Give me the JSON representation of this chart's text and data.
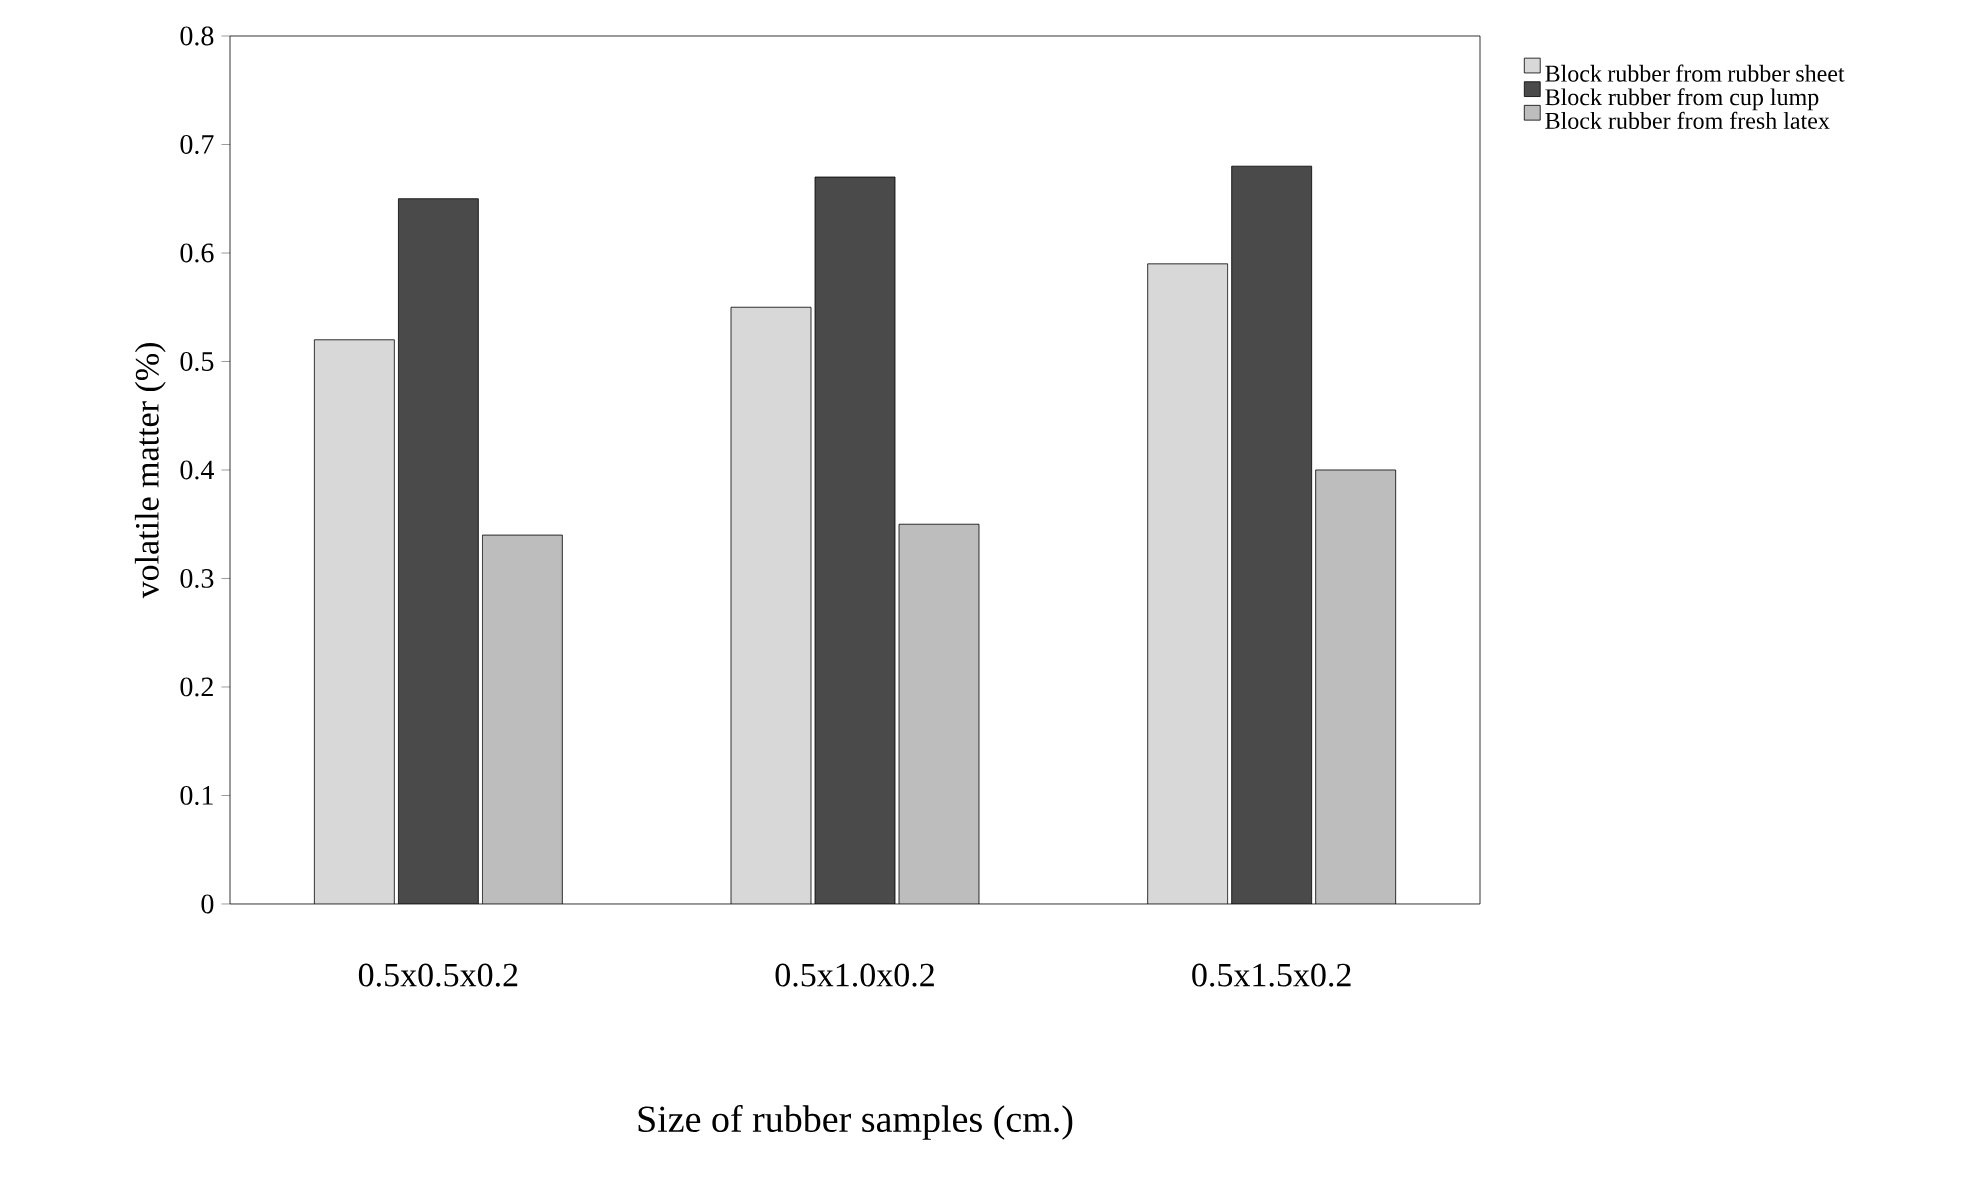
{
  "chart_data": {
    "type": "bar",
    "xlabel": "Size of rubber samples (cm.)",
    "ylabel": "volatile matter (%)",
    "categories": [
      "0.5x0.5x0.2",
      "0.5x1.0x0.2",
      "0.5x1.5x0.2"
    ],
    "series": [
      {
        "name": "Block rubber from rubber sheet",
        "color": "#d8d8d8",
        "values": [
          0.52,
          0.55,
          0.59
        ]
      },
      {
        "name": "Block rubber from cup lump",
        "color": "#4a4a4a",
        "values": [
          0.65,
          0.67,
          0.68
        ]
      },
      {
        "name": "Block rubber from fresh latex",
        "color": "#bdbdbd",
        "values": [
          0.34,
          0.35,
          0.4
        ]
      }
    ],
    "ylim": [
      0,
      0.8
    ],
    "yticks": [
      0,
      0.1,
      0.2,
      0.3,
      0.4,
      0.5,
      0.6,
      0.7,
      0.8
    ],
    "grid": false,
    "legend": "right"
  }
}
